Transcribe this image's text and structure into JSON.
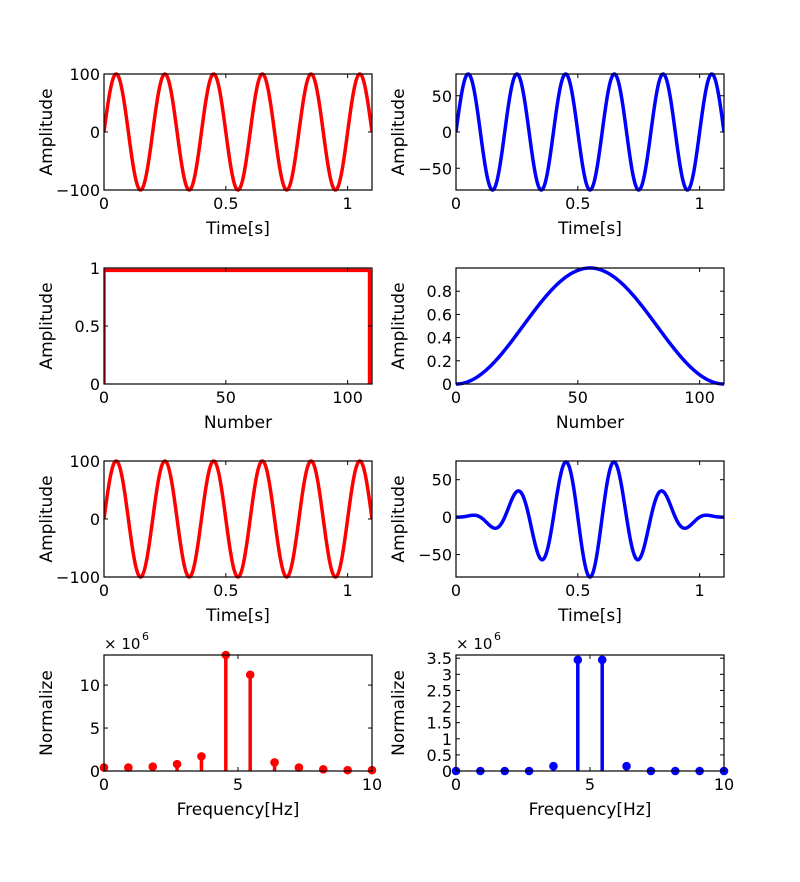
{
  "chart_data": [
    {
      "type": "line",
      "xlabel": "Time[s]",
      "ylabel": "Amplitude",
      "xlim": [
        0,
        1.1
      ],
      "ylim": [
        -100,
        100
      ],
      "xticks": [
        0,
        0.5,
        1
      ],
      "xtick_labels": [
        "0",
        "0.5",
        "1"
      ],
      "yticks": [
        -100,
        0,
        100
      ],
      "ytick_labels": [
        "−100",
        "0",
        "100"
      ],
      "color": "#ff0000",
      "series": [
        {
          "kind": "sine",
          "amplitude": 100,
          "frequency_hz": 5,
          "phase": 0,
          "x_start": 0,
          "x_end": 1.1,
          "envelope": "none"
        }
      ]
    },
    {
      "type": "line",
      "xlabel": "Time[s]",
      "ylabel": "Amplitude",
      "xlim": [
        0,
        1.1
      ],
      "ylim": [
        -80,
        80
      ],
      "xticks": [
        0,
        0.5,
        1
      ],
      "xtick_labels": [
        "0",
        "0.5",
        "1"
      ],
      "yticks": [
        -50,
        0,
        50
      ],
      "ytick_labels": [
        "−50",
        "0",
        "50"
      ],
      "color": "#0000ff",
      "series": [
        {
          "kind": "sine",
          "amplitude": 80,
          "frequency_hz": 5,
          "phase": 0,
          "x_start": 0,
          "x_end": 1.1,
          "envelope": "none"
        }
      ]
    },
    {
      "type": "line",
      "xlabel": "Number",
      "ylabel": "Amplitude",
      "xlim": [
        0,
        110
      ],
      "ylim": [
        0,
        1
      ],
      "xticks": [
        0,
        50,
        100
      ],
      "xtick_labels": [
        "0",
        "50",
        "100"
      ],
      "yticks": [
        0,
        0.5,
        1
      ],
      "ytick_labels": [
        "0",
        "0.5",
        "1"
      ],
      "color": "#ff0000",
      "series": [
        {
          "kind": "rect_window",
          "x": [
            0,
            0,
            109,
            109
          ],
          "y": [
            0,
            0.98,
            0.98,
            0
          ]
        }
      ]
    },
    {
      "type": "line",
      "xlabel": "Number",
      "ylabel": "Amplitude",
      "xlim": [
        0,
        110
      ],
      "ylim": [
        0,
        1
      ],
      "xticks": [
        0,
        50,
        100
      ],
      "xtick_labels": [
        "0",
        "50",
        "100"
      ],
      "yticks": [
        0,
        0.2,
        0.4,
        0.6,
        0.8
      ],
      "ytick_labels": [
        "0",
        "0.2",
        "0.4",
        "0.6",
        "0.8"
      ],
      "color": "#0000ff",
      "series": [
        {
          "kind": "hann_window",
          "length": 110,
          "x_start": 0,
          "x_end": 110
        }
      ]
    },
    {
      "type": "line",
      "xlabel": "Time[s]",
      "ylabel": "Amplitude",
      "xlim": [
        0,
        1.1
      ],
      "ylim": [
        -100,
        100
      ],
      "xticks": [
        0,
        0.5,
        1
      ],
      "xtick_labels": [
        "0",
        "0.5",
        "1"
      ],
      "yticks": [
        -100,
        0,
        100
      ],
      "ytick_labels": [
        "−100",
        "0",
        "100"
      ],
      "color": "#ff0000",
      "series": [
        {
          "kind": "sine",
          "amplitude": 100,
          "frequency_hz": 5,
          "phase": 0,
          "x_start": 0,
          "x_end": 1.1,
          "envelope": "none"
        }
      ]
    },
    {
      "type": "line",
      "xlabel": "Time[s]",
      "ylabel": "Amplitude",
      "xlim": [
        0,
        1.1
      ],
      "ylim": [
        -80,
        75
      ],
      "xticks": [
        0,
        0.5,
        1
      ],
      "xtick_labels": [
        "0",
        "0.5",
        "1"
      ],
      "yticks": [
        -50,
        0,
        50
      ],
      "ytick_labels": [
        "−50",
        "0",
        "50"
      ],
      "color": "#0000ff",
      "series": [
        {
          "kind": "sine",
          "amplitude": 80,
          "frequency_hz": 5,
          "phase": 0,
          "x_start": 0,
          "x_end": 1.1,
          "envelope": "hann"
        }
      ]
    },
    {
      "type": "stem",
      "xlabel": "Frequency[Hz]",
      "ylabel": "Normalize",
      "xlim": [
        0,
        10
      ],
      "ylim": [
        0,
        13.5
      ],
      "xticks": [
        0,
        5,
        10
      ],
      "xtick_labels": [
        "0",
        "5",
        "10"
      ],
      "yticks": [
        0,
        5,
        10
      ],
      "ytick_labels": [
        "0",
        "5",
        "10"
      ],
      "exponent_label": "× 10",
      "exponent": "6",
      "color": "#ff0000",
      "x": [
        0,
        0.909,
        1.818,
        2.727,
        3.636,
        4.545,
        5.455,
        6.364,
        7.273,
        8.182,
        9.091,
        10
      ],
      "values": [
        0.4,
        0.4,
        0.5,
        0.8,
        1.7,
        13.5,
        11.2,
        1.0,
        0.4,
        0.2,
        0.1,
        0.1
      ]
    },
    {
      "type": "stem",
      "xlabel": "Frequency[Hz]",
      "ylabel": "Normalize",
      "xlim": [
        0,
        10
      ],
      "ylim": [
        0,
        3.6
      ],
      "xticks": [
        0,
        5,
        10
      ],
      "xtick_labels": [
        "0",
        "5",
        "10"
      ],
      "yticks": [
        0,
        0.5,
        1,
        1.5,
        2,
        2.5,
        3,
        3.5
      ],
      "ytick_labels": [
        "0",
        "0.5",
        "1",
        "1.5",
        "2",
        "2.5",
        "3",
        "3.5"
      ],
      "exponent_label": "× 10",
      "exponent": "6",
      "color": "#0000ff",
      "x": [
        0,
        0.909,
        1.818,
        2.727,
        3.636,
        4.545,
        5.455,
        6.364,
        7.273,
        8.182,
        9.091,
        10
      ],
      "values": [
        0,
        0,
        0,
        0,
        0.15,
        3.45,
        3.45,
        0.15,
        0,
        0,
        0,
        0
      ]
    }
  ]
}
